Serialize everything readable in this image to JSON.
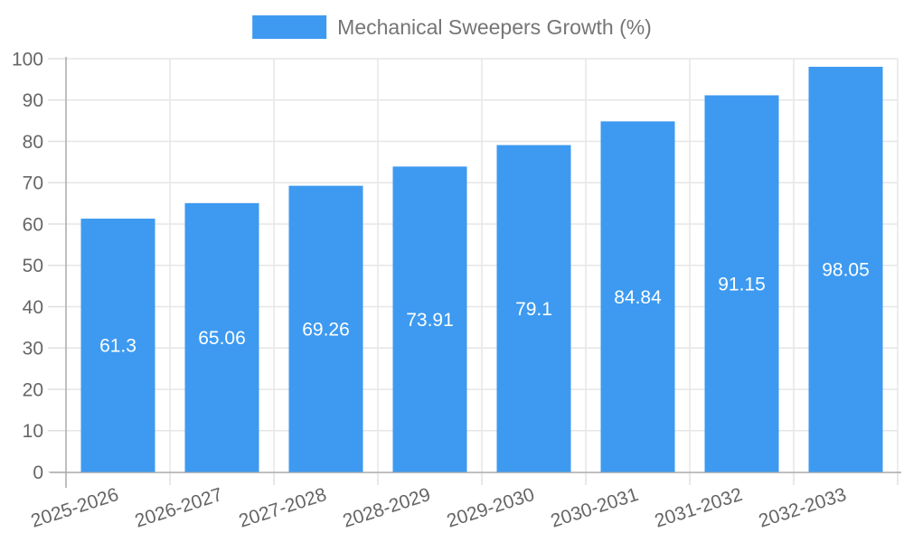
{
  "legend": {
    "label": "Mechanical Sweepers Growth (%)"
  },
  "colors": {
    "bar": "#3d9af0",
    "grid": "#e6e6e6",
    "tick": "#e0e0e0",
    "axis": "#aaaaaa",
    "axis_label": "#666666",
    "value_label": "#ffffff",
    "legend_text": "#757575"
  },
  "chart_data": {
    "type": "bar",
    "title": "Mechanical Sweepers Growth (%)",
    "xlabel": "",
    "ylabel": "",
    "categories": [
      "2025-2026",
      "2026-2027",
      "2027-2028",
      "2028-2029",
      "2029-2030",
      "2030-2031",
      "2031-2032",
      "2032-2033"
    ],
    "values": [
      61.3,
      65.06,
      69.26,
      73.91,
      79.1,
      84.84,
      91.15,
      98.05
    ],
    "value_labels": [
      "61.3",
      "65.06",
      "69.26",
      "73.91",
      "79.1",
      "84.84",
      "91.15",
      "98.05"
    ],
    "ylim": [
      0,
      100
    ],
    "y_tick_step": 10,
    "y_ticks": [
      "0",
      "10",
      "20",
      "30",
      "40",
      "50",
      "60",
      "70",
      "80",
      "90",
      "100"
    ],
    "grid": "on",
    "legend_position": "top",
    "x_label_rotation_deg": -18
  }
}
